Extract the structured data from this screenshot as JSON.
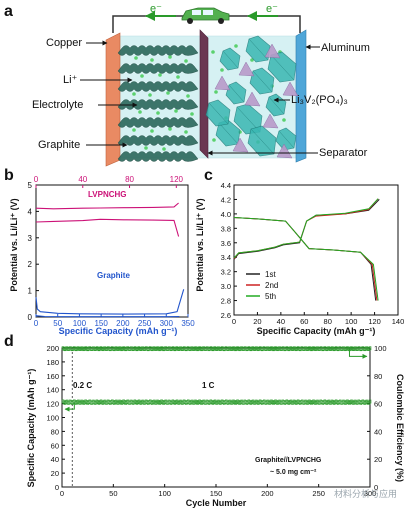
{
  "panel_labels": {
    "a": "a",
    "b": "b",
    "c": "c",
    "d": "d"
  },
  "schematic": {
    "electron_left": "e⁻",
    "electron_right": "e⁻",
    "labels": {
      "copper": "Copper",
      "li_ion": "Li⁺",
      "electrolyte": "Electrolyte",
      "graphite": "Graphite",
      "aluminum": "Aluminum",
      "cathode": "Li₃V₂(PO₄)₃",
      "separator": "Separator"
    },
    "colors": {
      "copper": "#e98a63",
      "aluminum": "#4fa6d8",
      "electrolyte": "#d6f1f3",
      "graphite": "#2f6b5f",
      "separator": "#6b3752",
      "octahedra": "#39b7b2",
      "tetrahedra": "#b99ac9",
      "li_dot": "#5bd16e",
      "car": "#53b04f"
    }
  },
  "watermark": "材料分析与应用",
  "chart_data": [
    {
      "panel": "b",
      "type": "line",
      "ylabel": "Potential vs. Li/Li⁺ (V)",
      "xlabel": "Specific Capacity (mAh g⁻¹)",
      "ylim": [
        0,
        5
      ],
      "yticks": [
        0,
        1,
        2,
        3,
        4,
        5
      ],
      "bottom_axis": {
        "range": [
          0,
          350
        ],
        "ticks": [
          0,
          50,
          100,
          150,
          200,
          250,
          300,
          350
        ],
        "color": "#2255cc"
      },
      "top_axis": {
        "range": [
          0,
          130
        ],
        "ticks": [
          0,
          40,
          80,
          120
        ],
        "color": "#cc1177"
      },
      "series": [
        {
          "name": "LVPNCHG",
          "axis": "top",
          "color": "#cc1177",
          "curves": [
            [
              [
                0,
                4.12
              ],
              [
                15,
                4.1
              ],
              [
                40,
                4.12
              ],
              [
                55,
                4.13
              ],
              [
                75,
                4.14
              ],
              [
                100,
                4.15
              ],
              [
                118,
                4.17
              ],
              [
                122,
                4.32
              ]
            ],
            [
              [
                0,
                3.6
              ],
              [
                15,
                3.62
              ],
              [
                40,
                3.65
              ],
              [
                55,
                3.7
              ],
              [
                75,
                3.68
              ],
              [
                100,
                3.67
              ],
              [
                118,
                3.66
              ],
              [
                122,
                3.05
              ]
            ]
          ]
        },
        {
          "name": "Graphite",
          "axis": "bottom",
          "color": "#2255cc",
          "curves": [
            [
              [
                0,
                0.75
              ],
              [
                3,
                0.3
              ],
              [
                10,
                0.2
              ],
              [
                50,
                0.14
              ],
              [
                100,
                0.12
              ],
              [
                200,
                0.11
              ],
              [
                300,
                0.12
              ],
              [
                325,
                0.2
              ],
              [
                340,
                1.05
              ]
            ],
            [
              [
                0,
                0.05
              ],
              [
                20,
                0.02
              ],
              [
                100,
                0.01
              ],
              [
                300,
                0.01
              ],
              [
                330,
                0.02
              ]
            ]
          ]
        }
      ]
    },
    {
      "panel": "c",
      "type": "line",
      "ylabel": "Potential vs. Li/Li⁺ (V)",
      "xlabel": "Specific Capacity (mAh g⁻¹)",
      "xlim": [
        0,
        140
      ],
      "xticks": [
        0,
        20,
        40,
        60,
        80,
        100,
        120,
        140
      ],
      "ylim": [
        2.6,
        4.4
      ],
      "yticks": [
        2.6,
        2.8,
        3.0,
        3.2,
        3.4,
        3.6,
        3.8,
        4.0,
        4.2,
        4.4
      ],
      "legend_position": "bottom-left",
      "series": [
        {
          "name": "1st",
          "color": "#222222",
          "charge": [
            [
              0,
              3.37
            ],
            [
              4,
              3.45
            ],
            [
              20,
              3.48
            ],
            [
              35,
              3.53
            ],
            [
              42,
              3.57
            ],
            [
              56,
              3.6
            ],
            [
              62,
              3.9
            ],
            [
              70,
              3.98
            ],
            [
              95,
              4.0
            ],
            [
              115,
              4.05
            ],
            [
              124,
              4.2
            ]
          ],
          "discharge": [
            [
              0,
              3.95
            ],
            [
              20,
              3.93
            ],
            [
              44,
              3.9
            ],
            [
              52,
              3.75
            ],
            [
              64,
              3.52
            ],
            [
              85,
              3.5
            ],
            [
              108,
              3.47
            ],
            [
              117,
              3.3
            ],
            [
              121,
              2.8
            ]
          ]
        },
        {
          "name": "2nd",
          "color": "#cc2222",
          "charge": [
            [
              0,
              3.38
            ],
            [
              4,
              3.46
            ],
            [
              20,
              3.49
            ],
            [
              35,
              3.54
            ],
            [
              42,
              3.58
            ],
            [
              56,
              3.61
            ],
            [
              62,
              3.9
            ],
            [
              70,
              3.97
            ],
            [
              95,
              4.0
            ],
            [
              115,
              4.06
            ],
            [
              123,
              4.21
            ]
          ],
          "discharge": [
            [
              0,
              3.95
            ],
            [
              20,
              3.93
            ],
            [
              44,
              3.9
            ],
            [
              52,
              3.75
            ],
            [
              64,
              3.52
            ],
            [
              85,
              3.5
            ],
            [
              108,
              3.47
            ],
            [
              118,
              3.3
            ],
            [
              122,
              2.8
            ]
          ]
        },
        {
          "name": "5th",
          "color": "#22aa22",
          "charge": [
            [
              0,
              3.39
            ],
            [
              4,
              3.46
            ],
            [
              20,
              3.49
            ],
            [
              35,
              3.54
            ],
            [
              42,
              3.58
            ],
            [
              56,
              3.61
            ],
            [
              62,
              3.9
            ],
            [
              70,
              3.98
            ],
            [
              95,
              4.01
            ],
            [
              115,
              4.07
            ],
            [
              123,
              4.21
            ]
          ],
          "discharge": [
            [
              0,
              3.95
            ],
            [
              20,
              3.93
            ],
            [
              44,
              3.9
            ],
            [
              52,
              3.75
            ],
            [
              64,
              3.52
            ],
            [
              85,
              3.5
            ],
            [
              108,
              3.47
            ],
            [
              119,
              3.3
            ],
            [
              123,
              2.8
            ]
          ]
        }
      ]
    },
    {
      "panel": "d",
      "type": "scatter",
      "xlabel": "Cycle Number",
      "ylabel_left": "Specific Capacity (mAh g⁻¹)",
      "ylabel_right": "Coulombic Efficiency (%)",
      "xlim": [
        0,
        300
      ],
      "xticks": [
        0,
        50,
        100,
        150,
        200,
        250,
        300
      ],
      "ylim_left": [
        0,
        200
      ],
      "yticks_left": [
        0,
        20,
        40,
        60,
        80,
        100,
        120,
        140,
        160,
        180,
        200
      ],
      "ylim_right": [
        0,
        100
      ],
      "yticks_right": [
        0,
        20,
        40,
        60,
        80,
        100
      ],
      "annotations": {
        "rate_low": "0.2 C",
        "rate_high": "1 C",
        "sample": "Graphite//LVPNCHG",
        "loading": "~ 5.0 mg cm⁻²"
      },
      "rate_switch_cycle": 10,
      "series": [
        {
          "name": "Coulombic Efficiency",
          "axis": "right",
          "color": "#2a9a2a",
          "level": 99.5,
          "range": [
            1,
            300
          ]
        },
        {
          "name": "Specific Capacity",
          "axis": "left",
          "color": "#2a9a2a",
          "level": 122,
          "range": [
            1,
            300
          ]
        }
      ]
    }
  ]
}
